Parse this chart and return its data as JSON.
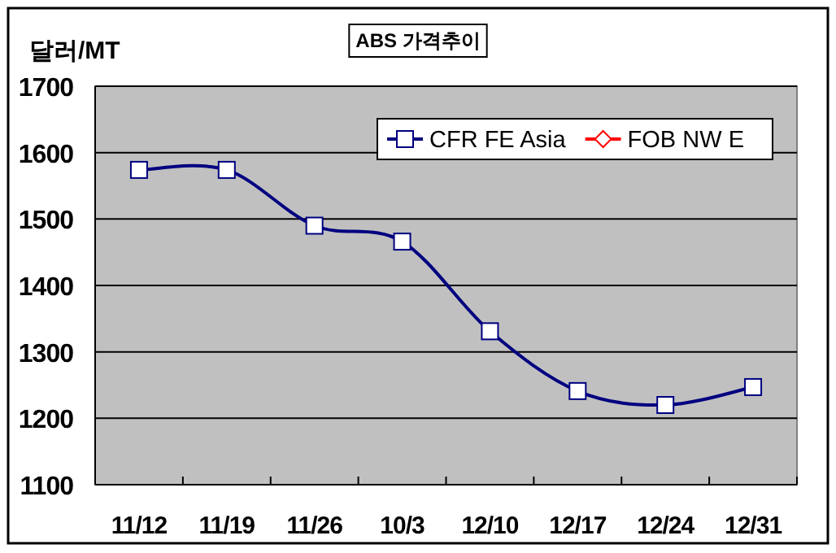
{
  "chart_data": {
    "type": "line",
    "title": "ABS 가격추이",
    "ylabel": "달러/MT",
    "categories": [
      "11/12",
      "11/19",
      "11/26",
      "10/3",
      "12/10",
      "12/17",
      "12/24",
      "12/31"
    ],
    "series": [
      {
        "name": "CFR FE Asia",
        "color": "#000080",
        "marker": "square",
        "values": [
          1574,
          1574,
          1490,
          1466,
          1331,
          1241,
          1220,
          1247
        ]
      },
      {
        "name": "FOB NW E",
        "color": "#ff0000",
        "marker": "diamond",
        "values": [
          null,
          null,
          null,
          null,
          null,
          null,
          null,
          null
        ]
      }
    ],
    "ylim": [
      1100,
      1700
    ],
    "yticks": [
      1100,
      1200,
      1300,
      1400,
      1500,
      1600,
      1700
    ],
    "grid": "y",
    "legend": "top right",
    "line_style": "solid"
  }
}
